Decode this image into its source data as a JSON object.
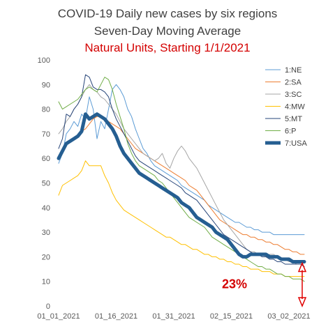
{
  "chart_data": {
    "type": "line",
    "title": "COVID-19 Daily new cases by six regions",
    "subtitle": "Seven-Day Moving Average",
    "subtitle2": "Natural Units, Starting 1/1/2021",
    "xlabel": "",
    "ylabel": "",
    "ylim": [
      0,
      100
    ],
    "yticks": [
      0,
      10,
      20,
      30,
      40,
      50,
      60,
      70,
      80,
      90,
      100
    ],
    "xticks": [
      "01_01_2021",
      "01_16_2021",
      "01_31_2021",
      "02_15_2021",
      "03_02_2021"
    ],
    "x_start_day": 0,
    "x_end_day": 64,
    "grid": false,
    "legend_position": "right",
    "annotation": "23%",
    "series": [
      {
        "name": "1:NE",
        "color": "#5b9bd5",
        "width": 1,
        "values": [
          58,
          62,
          70,
          72,
          75,
          73,
          78,
          76,
          85,
          80,
          68,
          75,
          72,
          80,
          88,
          90,
          88,
          85,
          80,
          77,
          72,
          68,
          64,
          62,
          59,
          57,
          56,
          55,
          54,
          53,
          52,
          51,
          49,
          48,
          47,
          46,
          45,
          44,
          43,
          41,
          40,
          39,
          38,
          37,
          36,
          35,
          34,
          34,
          33,
          32,
          32,
          31,
          31,
          30,
          30,
          30,
          29,
          29,
          29,
          29,
          29,
          29,
          29,
          29,
          29
        ]
      },
      {
        "name": "2:SA",
        "color": "#ed7d31",
        "width": 1,
        "values": [
          60,
          63,
          66,
          67,
          68,
          69,
          71,
          72,
          74,
          76,
          77,
          77,
          76,
          75,
          74,
          73,
          72,
          70,
          68,
          66,
          64,
          63,
          62,
          61,
          60,
          59,
          58,
          57,
          56,
          55,
          54,
          53,
          52,
          51,
          49,
          48,
          47,
          45,
          43,
          41,
          39,
          37,
          35,
          34,
          33,
          32,
          31,
          30,
          29,
          29,
          28,
          28,
          27,
          27,
          26,
          26,
          25,
          25,
          24,
          23,
          23,
          22,
          22,
          21,
          21
        ]
      },
      {
        "name": "3:SC",
        "color": "#a5a5a5",
        "width": 1,
        "values": [
          70,
          72,
          75,
          77,
          80,
          82,
          85,
          88,
          90,
          88,
          87,
          85,
          84,
          82,
          80,
          78,
          75,
          72,
          70,
          68,
          66,
          64,
          62,
          61,
          60,
          59,
          60,
          62,
          58,
          56,
          60,
          63,
          65,
          63,
          60,
          58,
          56,
          53,
          50,
          47,
          44,
          41,
          38,
          35,
          33,
          31,
          29,
          27,
          25,
          23,
          22,
          22,
          21,
          21,
          20,
          21,
          21,
          20,
          19,
          19,
          18,
          18,
          17,
          17,
          16
        ]
      },
      {
        "name": "4:MW",
        "color": "#ffc000",
        "width": 1,
        "values": [
          45,
          49,
          50,
          51,
          52,
          53,
          55,
          59,
          57,
          57,
          57,
          57,
          53,
          50,
          46,
          43,
          41,
          39,
          38,
          37,
          36,
          35,
          34,
          33,
          32,
          31,
          30,
          29,
          28,
          28,
          27,
          26,
          25,
          25,
          24,
          23,
          23,
          22,
          21,
          21,
          20,
          20,
          19,
          19,
          18,
          18,
          17,
          17,
          16,
          16,
          15,
          15,
          15,
          14,
          14,
          14,
          13,
          13,
          13,
          12,
          12,
          12,
          12,
          12,
          12
        ]
      },
      {
        "name": "5:MT",
        "color": "#264478",
        "width": 1,
        "values": [
          64,
          68,
          78,
          77,
          80,
          82,
          85,
          94,
          93,
          89,
          88,
          88,
          87,
          85,
          80,
          76,
          73,
          70,
          67,
          64,
          61,
          59,
          58,
          57,
          56,
          55,
          54,
          53,
          52,
          51,
          50,
          49,
          48,
          46,
          45,
          44,
          43,
          41,
          39,
          37,
          35,
          33,
          31,
          29,
          28,
          27,
          26,
          25,
          24,
          23,
          22,
          21,
          21,
          20,
          20,
          19,
          19,
          18,
          18,
          17,
          17,
          17,
          17,
          17,
          16
        ]
      },
      {
        "name": "6:P",
        "color": "#70ad47",
        "width": 1,
        "values": [
          83,
          80,
          81,
          82,
          83,
          84,
          86,
          88,
          89,
          88,
          87,
          90,
          93,
          92,
          88,
          82,
          77,
          72,
          66,
          62,
          59,
          57,
          56,
          55,
          54,
          53,
          51,
          50,
          48,
          46,
          44,
          42,
          40,
          38,
          36,
          35,
          34,
          33,
          32,
          30,
          28,
          27,
          26,
          25,
          24,
          23,
          22,
          21,
          20,
          19,
          18,
          17,
          16,
          16,
          15,
          15,
          14,
          13,
          13,
          12,
          12,
          11,
          11,
          11,
          10
        ]
      },
      {
        "name": "7:USA",
        "color": "#255e91",
        "width": 5,
        "values": [
          60,
          63,
          66,
          67,
          68,
          69,
          71,
          78,
          76,
          77,
          78,
          77,
          76,
          74,
          72,
          69,
          65,
          62,
          60,
          58,
          56,
          54,
          53,
          52,
          51,
          50,
          49,
          48,
          47,
          46,
          45,
          44,
          42,
          41,
          40,
          38,
          36,
          35,
          34,
          33,
          32,
          30,
          29,
          28,
          27,
          25,
          23,
          21,
          20,
          20,
          21,
          21,
          21,
          21,
          21,
          20,
          20,
          20,
          19,
          19,
          19,
          18,
          18,
          18,
          18
        ]
      }
    ]
  }
}
